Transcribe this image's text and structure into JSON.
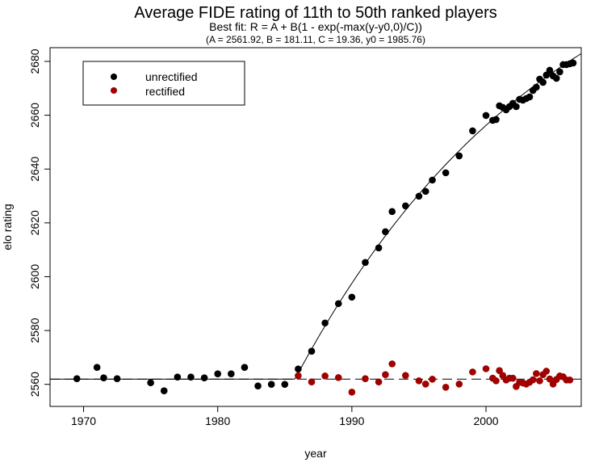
{
  "chart_data": {
    "type": "scatter",
    "title": "Average FIDE rating of 11th to 50th ranked players",
    "subtitle": "Best fit:  R = A + B(1 - exp(-max(y-y0,0)/C))",
    "params_text": "(A = 2561.92,  B = 181.11,  C = 19.36,  y0 = 1985.76)",
    "fit": {
      "A": 2561.92,
      "B": 181.11,
      "C": 19.36,
      "y0": 1985.76
    },
    "xlabel": "year",
    "ylabel": "elo rating",
    "xlim": [
      1967.5,
      2007.1
    ],
    "ylim": [
      2551.8,
      2685.1
    ],
    "x_ticks": [
      1970,
      1980,
      1990,
      2000
    ],
    "y_ticks": [
      2560,
      2580,
      2600,
      2620,
      2640,
      2660,
      2680
    ],
    "grid": false,
    "legend_position": "top-left",
    "reference_line": {
      "value": 2561.92,
      "style": "dashed"
    },
    "series": [
      {
        "name": "unrectified",
        "color": "#000000",
        "x": [
          1969.5,
          1971,
          1971.5,
          1972.5,
          1975,
          1976,
          1977,
          1978,
          1979,
          1980,
          1981,
          1982,
          1983,
          1984,
          1985,
          1986,
          1987,
          1988,
          1989,
          1990,
          1991,
          1992,
          1992.5,
          1993,
          1994,
          1995,
          1995.5,
          1996,
          1997,
          1998,
          1999,
          2000,
          2000.5,
          2000.75,
          2001,
          2001.25,
          2001.5,
          2001.75,
          2002,
          2002.25,
          2002.5,
          2002.75,
          2003,
          2003.25,
          2003.5,
          2003.75,
          2004,
          2004.25,
          2004.5,
          2004.75,
          2005,
          2005.25,
          2005.5,
          2005.75,
          2006,
          2006.25,
          2006.5
        ],
        "y": [
          2562.1,
          2566.3,
          2562.4,
          2562.1,
          2560.6,
          2557.6,
          2562.7,
          2562.7,
          2562.4,
          2563.9,
          2563.9,
          2566.3,
          2559.4,
          2560,
          2560,
          2565.7,
          2572.3,
          2582.8,
          2590,
          2592.4,
          2605.3,
          2610.7,
          2616.7,
          2624.2,
          2626.3,
          2629.9,
          2631.7,
          2635.9,
          2638.6,
          2644.9,
          2654.2,
          2659.9,
          2658.1,
          2658.4,
          2663.5,
          2662.9,
          2662,
          2663.2,
          2664.4,
          2663.2,
          2665.9,
          2665.6,
          2666.2,
          2666.8,
          2669.2,
          2670.4,
          2673.4,
          2672.2,
          2674.9,
          2676.7,
          2674.6,
          2673.7,
          2676.1,
          2678.8,
          2678.8,
          2679.1,
          2679.4
        ]
      },
      {
        "name": "rectified",
        "color": "#a00000",
        "x": [
          1986,
          1987,
          1988,
          1989,
          1990,
          1991,
          1992,
          1992.5,
          1993,
          1994,
          1995,
          1995.5,
          1996,
          1997,
          1998,
          1999,
          2000,
          2000.5,
          2000.75,
          2001,
          2001.25,
          2001.5,
          2001.75,
          2002,
          2002.25,
          2002.5,
          2002.75,
          2003,
          2003.25,
          2003.5,
          2003.75,
          2004,
          2004.25,
          2004.5,
          2004.75,
          2005,
          2005.25,
          2005.5,
          2005.75,
          2006,
          2006.25
        ],
        "y": [
          2563.2,
          2560.9,
          2563.1,
          2562.5,
          2557.1,
          2562.1,
          2560.9,
          2563.6,
          2567.6,
          2563.3,
          2561.3,
          2560.1,
          2561.9,
          2558.9,
          2560.1,
          2564.6,
          2565.8,
          2562.3,
          2561.3,
          2565.1,
          2563.3,
          2561.6,
          2562.3,
          2562.3,
          2559.2,
          2560.8,
          2560.5,
          2560.1,
          2560.8,
          2561.7,
          2564,
          2561.3,
          2563.6,
          2564.9,
          2562,
          2560.1,
          2561.8,
          2563.1,
          2562.8,
          2561.6,
          2561.6
        ]
      }
    ]
  }
}
